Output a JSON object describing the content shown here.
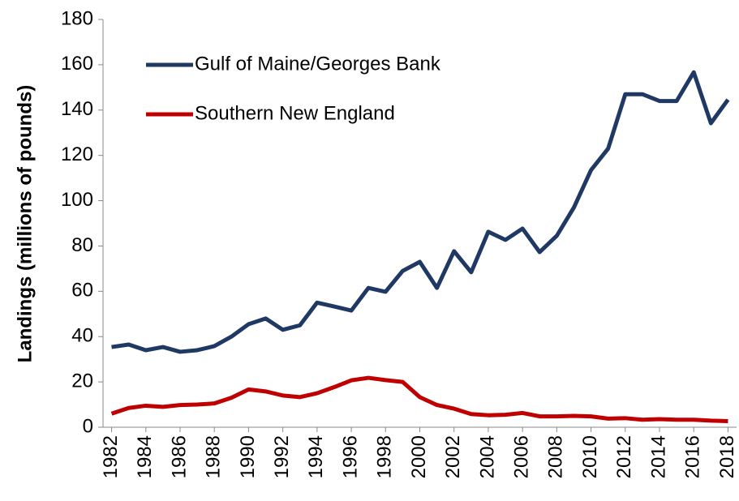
{
  "chart_data": {
    "type": "line",
    "y_label": "Landings (millions of pounds)",
    "x": [
      1982,
      1983,
      1984,
      1985,
      1986,
      1987,
      1988,
      1989,
      1990,
      1991,
      1992,
      1993,
      1994,
      1995,
      1996,
      1997,
      1998,
      1999,
      2000,
      2001,
      2002,
      2003,
      2004,
      2005,
      2006,
      2007,
      2008,
      2009,
      2010,
      2011,
      2012,
      2013,
      2014,
      2015,
      2016,
      2017,
      2018
    ],
    "xlim": [
      1981.5,
      2018.5
    ],
    "xticks": [
      1982,
      1984,
      1986,
      1988,
      1990,
      1992,
      1994,
      1996,
      1998,
      2000,
      2002,
      2004,
      2006,
      2008,
      2010,
      2012,
      2014,
      2016,
      2018
    ],
    "ylim": [
      0,
      180
    ],
    "yticks": [
      0,
      20,
      40,
      60,
      80,
      100,
      120,
      140,
      160,
      180
    ],
    "legend": "top-left",
    "series": [
      {
        "name": "Gulf of Maine/Georges Bank",
        "color": "#203864",
        "values": [
          35.4,
          36.5,
          34,
          35.4,
          33.3,
          34,
          35.8,
          40,
          45.5,
          48,
          43,
          45,
          55,
          53.3,
          51.5,
          61.5,
          59.8,
          69,
          73,
          61.5,
          77.7,
          68.4,
          86.3,
          82.7,
          87.7,
          77.3,
          84.5,
          97,
          113.5,
          123,
          147,
          147,
          144,
          144,
          156.7,
          134.2,
          144.6
        ]
      },
      {
        "name": "Southern New England",
        "color": "#c00000",
        "values": [
          6,
          8.5,
          9.5,
          9,
          9.8,
          10,
          10.5,
          13,
          16.7,
          15.8,
          14,
          13.3,
          15,
          17.7,
          20.7,
          21.8,
          20.8,
          20,
          13.3,
          9.8,
          8.2,
          5.8,
          5.3,
          5.5,
          6.3,
          4.8,
          4.8,
          5,
          4.8,
          3.8,
          4,
          3.3,
          3.6,
          3.3,
          3.3,
          2.9,
          2.7
        ]
      }
    ]
  }
}
